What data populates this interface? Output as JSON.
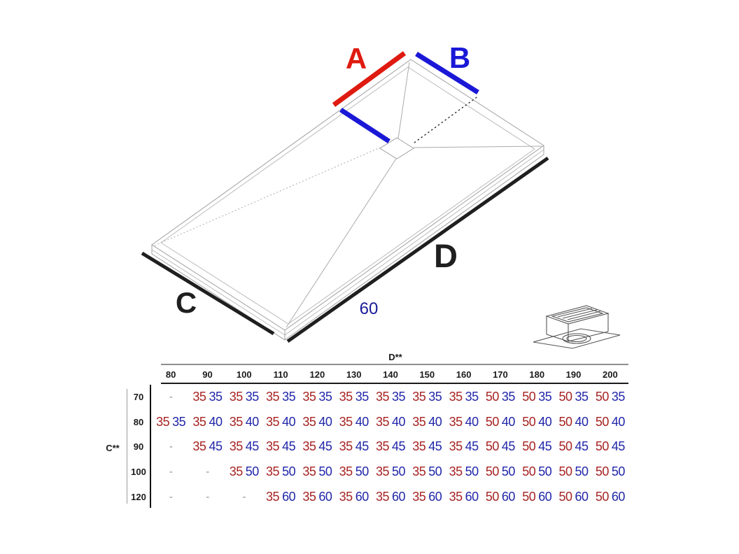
{
  "diagram": {
    "label_a": "A",
    "label_b": "B",
    "label_c": "C",
    "label_d": "D",
    "drain_offset": "60"
  },
  "colors": {
    "line_red": "#df1a10",
    "line_blue": "#1a18d6",
    "line_dark": "#1f1f1f",
    "navy": "#1a1a99",
    "val_red": "#a62322",
    "val_blue": "#2026a8"
  },
  "table": {
    "col_axis_label": "D**",
    "row_axis_label": "C**",
    "columns": [
      "80",
      "90",
      "100",
      "110",
      "120",
      "130",
      "140",
      "150",
      "160",
      "170",
      "180",
      "190",
      "200"
    ],
    "rows": [
      {
        "label": "70",
        "cells": [
          "-",
          [
            "35",
            "35"
          ],
          [
            "35",
            "35"
          ],
          [
            "35",
            "35"
          ],
          [
            "35",
            "35"
          ],
          [
            "35",
            "35"
          ],
          [
            "35",
            "35"
          ],
          [
            "35",
            "35"
          ],
          [
            "35",
            "35"
          ],
          [
            "50",
            "35"
          ],
          [
            "50",
            "35"
          ],
          [
            "50",
            "35"
          ],
          [
            "50",
            "35"
          ]
        ]
      },
      {
        "label": "80",
        "cells": [
          [
            "35",
            "35"
          ],
          [
            "35",
            "40"
          ],
          [
            "35",
            "40"
          ],
          [
            "35",
            "40"
          ],
          [
            "35",
            "40"
          ],
          [
            "35",
            "40"
          ],
          [
            "35",
            "40"
          ],
          [
            "35",
            "40"
          ],
          [
            "35",
            "40"
          ],
          [
            "50",
            "40"
          ],
          [
            "50",
            "40"
          ],
          [
            "50",
            "40"
          ],
          [
            "50",
            "40"
          ]
        ]
      },
      {
        "label": "90",
        "cells": [
          "-",
          [
            "35",
            "45"
          ],
          [
            "35",
            "45"
          ],
          [
            "35",
            "45"
          ],
          [
            "35",
            "45"
          ],
          [
            "35",
            "45"
          ],
          [
            "35",
            "45"
          ],
          [
            "35",
            "45"
          ],
          [
            "35",
            "45"
          ],
          [
            "50",
            "45"
          ],
          [
            "50",
            "45"
          ],
          [
            "50",
            "45"
          ],
          [
            "50",
            "45"
          ]
        ]
      },
      {
        "label": "100",
        "cells": [
          "-",
          "-",
          [
            "35",
            "50"
          ],
          [
            "35",
            "50"
          ],
          [
            "35",
            "50"
          ],
          [
            "35",
            "50"
          ],
          [
            "35",
            "50"
          ],
          [
            "35",
            "50"
          ],
          [
            "35",
            "50"
          ],
          [
            "50",
            "50"
          ],
          [
            "50",
            "50"
          ],
          [
            "50",
            "50"
          ],
          [
            "50",
            "50"
          ]
        ]
      },
      {
        "label": "120",
        "cells": [
          "-",
          "-",
          "-",
          [
            "35",
            "60"
          ],
          [
            "35",
            "60"
          ],
          [
            "35",
            "60"
          ],
          [
            "35",
            "60"
          ],
          [
            "35",
            "60"
          ],
          [
            "35",
            "60"
          ],
          [
            "50",
            "60"
          ],
          [
            "50",
            "60"
          ],
          [
            "50",
            "60"
          ],
          [
            "50",
            "60"
          ]
        ]
      }
    ]
  }
}
